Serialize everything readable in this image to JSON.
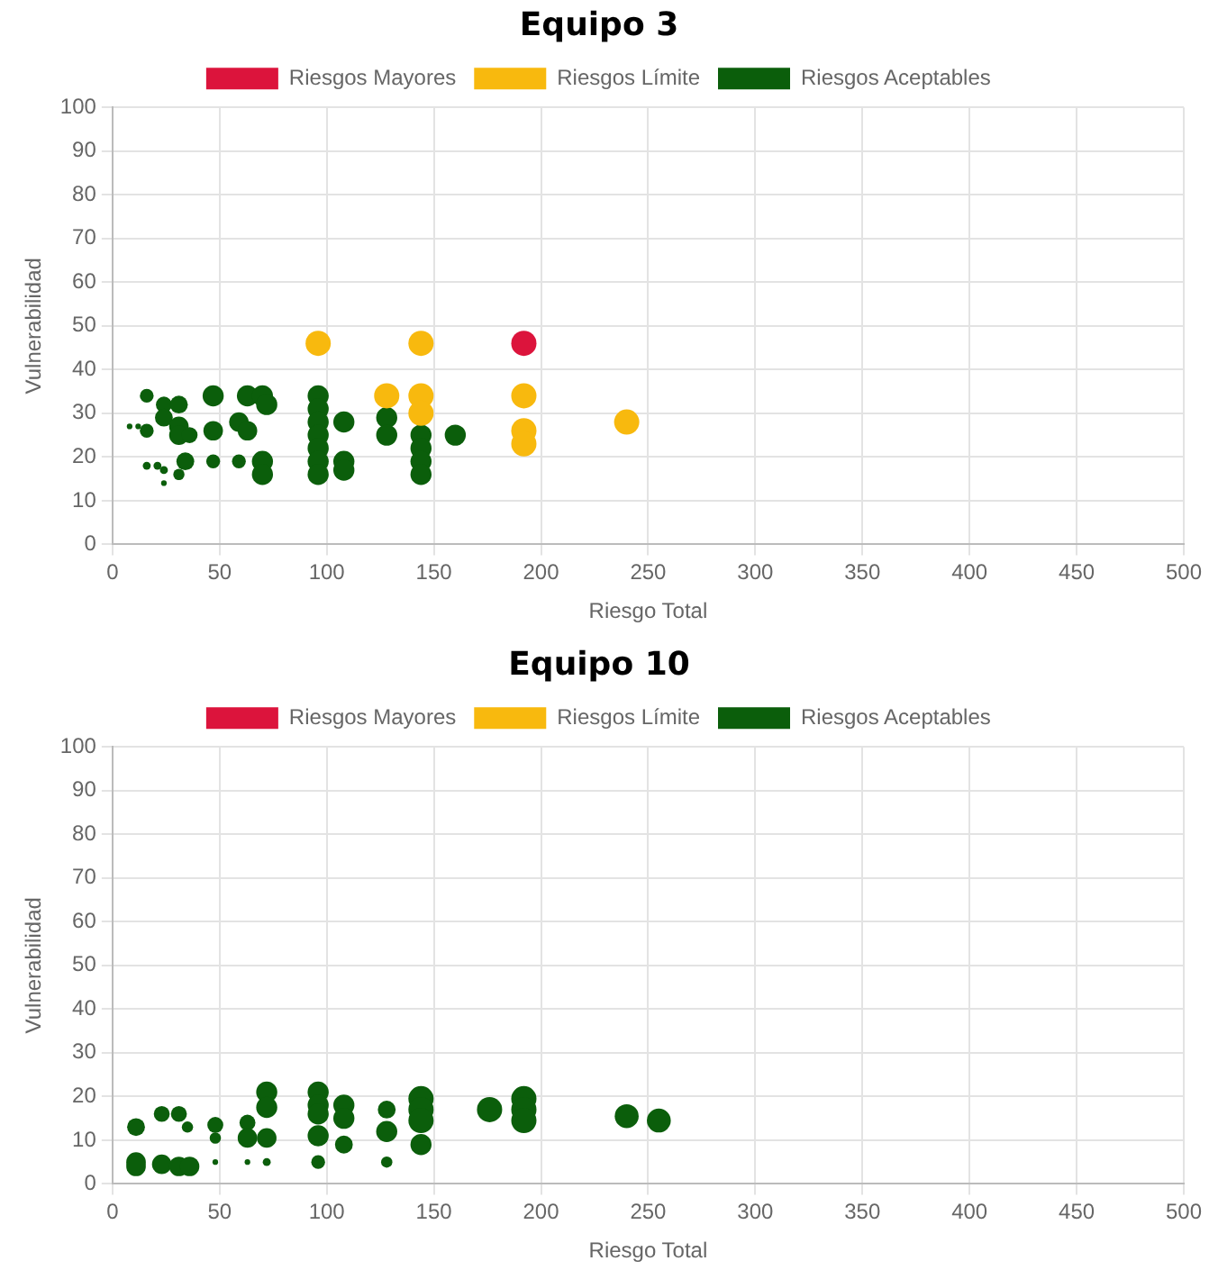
{
  "chart_data": [
    {
      "type": "bubble",
      "title": "Equipo 3",
      "xlabel": "Riesgo Total",
      "ylabel": "Vulnerabilidad",
      "xlim": [
        0,
        500
      ],
      "xticks": [
        0,
        50,
        100,
        150,
        200,
        250,
        300,
        350,
        400,
        450,
        500
      ],
      "ylim": [
        0,
        100
      ],
      "yticks": [
        0,
        10,
        20,
        30,
        40,
        50,
        60,
        70,
        80,
        90,
        100
      ],
      "grid": true,
      "legend": "top",
      "series": [
        {
          "name": "Riesgos Mayores",
          "color": "#dc143c",
          "x": [
            192
          ],
          "values": [
            46
          ],
          "sizes": [
            1
          ]
        },
        {
          "name": "Riesgos Límite",
          "color": "#f8b90e",
          "x": [
            96,
            144,
            128,
            144,
            144,
            192,
            192,
            192,
            240
          ],
          "values": [
            46,
            46,
            34,
            34,
            30,
            34,
            26,
            23,
            28
          ],
          "sizes": [
            1,
            1,
            1,
            1,
            1,
            1,
            1,
            1,
            1
          ]
        },
        {
          "name": "Riesgos Aceptables",
          "color": "#0b5e0b",
          "x": [
            16,
            24,
            31,
            24,
            31,
            8,
            12,
            16,
            31,
            36,
            47,
            47,
            63,
            70,
            72,
            59,
            63,
            96,
            96,
            96,
            96,
            96,
            108,
            96,
            96,
            108,
            108,
            128,
            128,
            144,
            144,
            144,
            144,
            160,
            16,
            21,
            24,
            31,
            24,
            34,
            47,
            59,
            70,
            70
          ],
          "values": [
            34,
            32,
            32,
            29,
            27,
            27,
            27,
            26,
            25,
            25,
            34,
            26,
            34,
            34,
            32,
            28,
            26,
            34,
            31,
            28,
            25,
            22,
            28,
            19,
            16,
            19,
            17,
            29,
            25,
            25,
            22,
            19,
            16,
            25,
            18,
            18,
            17,
            16,
            14,
            19,
            19,
            19,
            19,
            16
          ],
          "sizes": [
            0.3,
            0.4,
            0.5,
            0.5,
            0.6,
            0.05,
            0.05,
            0.3,
            0.6,
            0.4,
            0.7,
            0.6,
            0.7,
            0.7,
            0.7,
            0.6,
            0.6,
            0.7,
            0.7,
            0.7,
            0.7,
            0.7,
            0.7,
            0.7,
            0.7,
            0.7,
            0.7,
            0.7,
            0.7,
            0.7,
            0.7,
            0.7,
            0.7,
            0.7,
            0.1,
            0.1,
            0.1,
            0.2,
            0.05,
            0.5,
            0.3,
            0.3,
            0.7,
            0.7
          ]
        }
      ]
    },
    {
      "type": "bubble",
      "title": "Equipo 10",
      "xlabel": "Riesgo Total",
      "ylabel": "Vulnerabilidad",
      "xlim": [
        0,
        500
      ],
      "xticks": [
        0,
        50,
        100,
        150,
        200,
        250,
        300,
        350,
        400,
        450,
        500
      ],
      "ylim": [
        0,
        100
      ],
      "yticks": [
        0,
        10,
        20,
        30,
        40,
        50,
        60,
        70,
        80,
        90,
        100
      ],
      "grid": true,
      "legend": "top",
      "series": [
        {
          "name": "Riesgos Mayores",
          "color": "#dc143c"
        },
        {
          "name": "Riesgos Límite",
          "color": "#f8b90e"
        },
        {
          "name": "Riesgos Aceptables",
          "color": "#0b5e0b",
          "x": [
            11,
            11,
            11,
            23,
            31,
            35,
            23,
            31,
            36,
            48,
            48,
            48,
            63,
            63,
            63,
            72,
            72,
            72,
            72,
            96,
            96,
            96,
            96,
            96,
            108,
            108,
            108,
            128,
            128,
            128,
            144,
            144,
            144,
            144,
            176,
            192,
            192,
            192,
            240,
            255
          ],
          "values": [
            13,
            5,
            4,
            16,
            16,
            13,
            4.5,
            4,
            4,
            13.5,
            10.5,
            5,
            14,
            10.5,
            5,
            21,
            17.5,
            10.5,
            5,
            21,
            18,
            16,
            11,
            5,
            18,
            15,
            9,
            17,
            12,
            5,
            19.5,
            17,
            14.5,
            9,
            17,
            19.5,
            17,
            14.5,
            15.5,
            14.5
          ],
          "sizes": [
            0.5,
            0.6,
            0.6,
            0.4,
            0.4,
            0.2,
            0.6,
            0.6,
            0.6,
            0.4,
            0.2,
            0.05,
            0.4,
            0.6,
            0.05,
            0.7,
            0.7,
            0.6,
            0.1,
            0.7,
            0.7,
            0.7,
            0.7,
            0.3,
            0.7,
            0.7,
            0.5,
            0.5,
            0.7,
            0.2,
            1,
            1,
            1,
            0.7,
            1,
            1,
            1,
            1,
            0.9,
            0.9
          ]
        }
      ]
    }
  ]
}
